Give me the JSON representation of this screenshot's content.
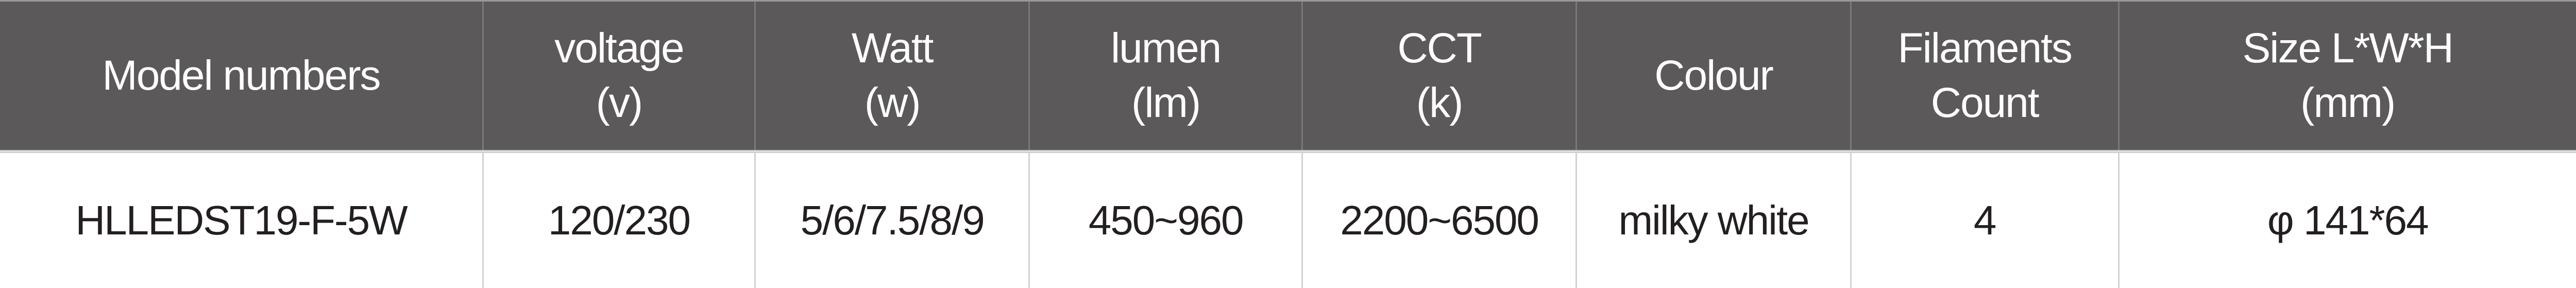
{
  "headers": [
    {
      "line1": "Model numbers",
      "line2": ""
    },
    {
      "line1": "voltage",
      "line2": "(v)"
    },
    {
      "line1": "Watt",
      "line2": "(w)"
    },
    {
      "line1": "lumen",
      "line2": "(lm)"
    },
    {
      "line1": "CCT",
      "line2": "(k)"
    },
    {
      "line1": "Colour",
      "line2": ""
    },
    {
      "line1": "Filaments",
      "line2": "Count"
    },
    {
      "line1": "Size L*W*H",
      "line2": "(mm)"
    }
  ],
  "rows": [
    [
      "HLLEDST19-F-5W",
      "120/230",
      "5/6/7.5/8/9",
      "450~960",
      "2200~6500",
      "milky white",
      "4",
      "φ 141*64"
    ]
  ],
  "colors": {
    "header_bg": "#5b5959",
    "header_text": "#ffffff",
    "body_text": "#231f20"
  }
}
